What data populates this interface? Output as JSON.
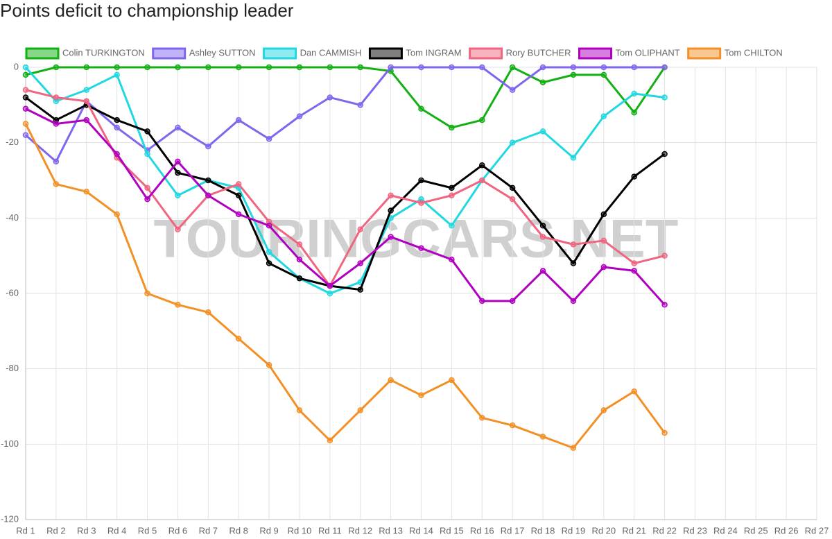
{
  "chart_data": {
    "type": "line",
    "title": "Points deficit to championship leader",
    "watermark": "TOURINGCARS.NET",
    "categories": [
      "Rd 1",
      "Rd 2",
      "Rd 3",
      "Rd 4",
      "Rd 5",
      "Rd 6",
      "Rd 7",
      "Rd 8",
      "Rd 9",
      "Rd 10",
      "Rd 11",
      "Rd 12",
      "Rd 13",
      "Rd 14",
      "Rd 15",
      "Rd 16",
      "Rd 17",
      "Rd 18",
      "Rd 19",
      "Rd 20",
      "Rd 21",
      "Rd 22",
      "Rd 23",
      "Rd 24",
      "Rd 25",
      "Rd 26",
      "Rd 27"
    ],
    "ylim": [
      -120,
      0
    ],
    "yticks": [
      0,
      -20,
      -40,
      -60,
      -80,
      -100,
      -120
    ],
    "grid": true,
    "legend": "top",
    "series": [
      {
        "name": "Colin TURKINGTON",
        "color": "#12b012",
        "values": [
          -2,
          0,
          0,
          0,
          0,
          0,
          0,
          0,
          0,
          0,
          0,
          0,
          -1,
          -11,
          -16,
          -14,
          0,
          -4,
          -2,
          -2,
          -12,
          0,
          null,
          null,
          null,
          null,
          null
        ]
      },
      {
        "name": "Ashley SUTTON",
        "color": "#8066ee",
        "values": [
          -18,
          -25,
          -9,
          -16,
          -22,
          -16,
          -21,
          -14,
          -19,
          -13,
          -8,
          -10,
          0,
          0,
          0,
          0,
          -6,
          0,
          0,
          0,
          0,
          0,
          null,
          null,
          null,
          null,
          null
        ]
      },
      {
        "name": "Dan CAMMISH",
        "color": "#20d8e0",
        "values": [
          0,
          -9,
          -6,
          -2,
          -23,
          -34,
          -30,
          -32,
          -49,
          -56,
          -60,
          -57,
          -40,
          -35,
          -42,
          -30,
          -20,
          -17,
          -24,
          -13,
          -7,
          -8,
          null,
          null,
          null,
          null,
          null
        ]
      },
      {
        "name": "Tom INGRAM",
        "color": "#000000",
        "values": [
          -8,
          -14,
          -10,
          -14,
          -17,
          -28,
          -30,
          -34,
          -52,
          -56,
          -58,
          -59,
          -38,
          -30,
          -32,
          -26,
          -32,
          -42,
          -52,
          -39,
          -29,
          -23,
          null,
          null,
          null,
          null,
          null
        ]
      },
      {
        "name": "Rory BUTCHER",
        "color": "#f0657f",
        "values": [
          -6,
          -8,
          -9,
          -24,
          -32,
          -43,
          -34,
          -31,
          -41,
          -47,
          -58,
          -43,
          -34,
          -36,
          -34,
          -30,
          -35,
          -45,
          -47,
          -46,
          -52,
          -50,
          null,
          null,
          null,
          null,
          null
        ]
      },
      {
        "name": "Tom OLIPHANT",
        "color": "#b000c0",
        "values": [
          -11,
          -15,
          -14,
          -23,
          -35,
          -25,
          -34,
          -39,
          -42,
          -51,
          -58,
          -52,
          -45,
          -48,
          -51,
          -62,
          -62,
          -54,
          -62,
          -53,
          -54,
          -63,
          null,
          null,
          null,
          null,
          null
        ]
      },
      {
        "name": "Tom CHILTON",
        "color": "#f39025",
        "values": [
          -15,
          -31,
          -33,
          -39,
          -60,
          -63,
          -65,
          -72,
          -79,
          -91,
          -99,
          -91,
          -83,
          -87,
          -83,
          -93,
          -95,
          -98,
          -101,
          -91,
          -86,
          -97,
          null,
          null,
          null,
          null,
          null
        ]
      }
    ]
  }
}
